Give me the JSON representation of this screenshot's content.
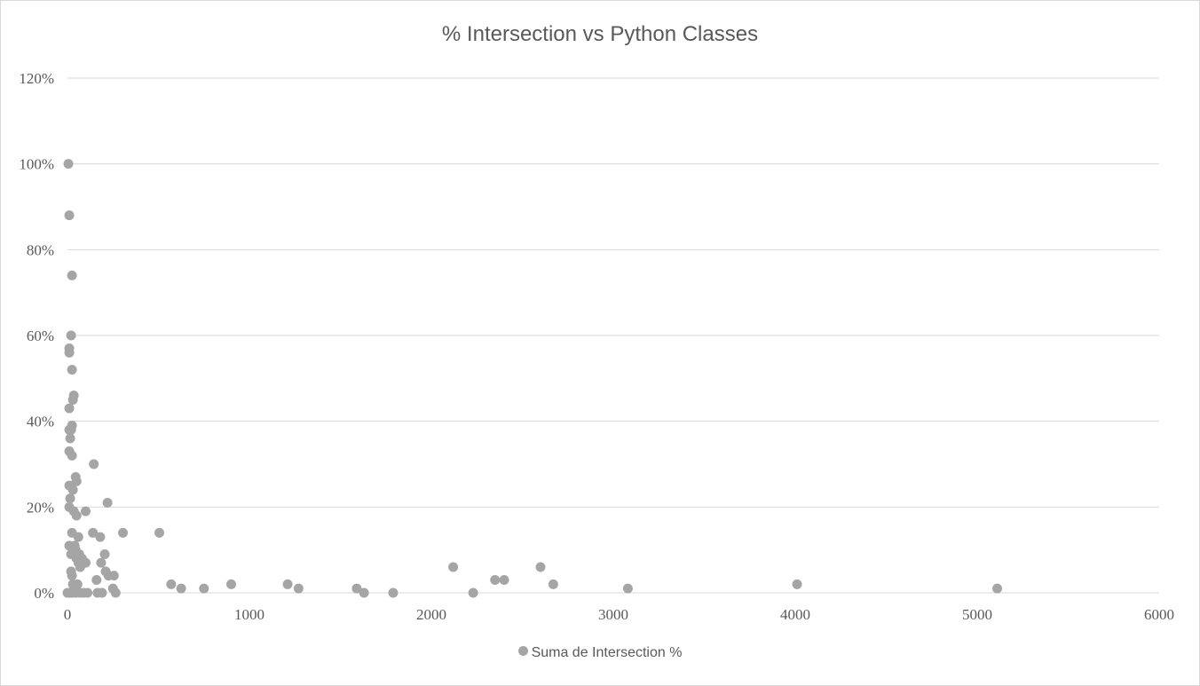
{
  "chart_data": {
    "type": "scatter",
    "title": "% Intersection vs Python Classes",
    "xlabel": "",
    "ylabel": "",
    "xlim": [
      0,
      6000
    ],
    "ylim": [
      0,
      1.2
    ],
    "x_ticks": [
      "0",
      "1000",
      "2000",
      "3000",
      "4000",
      "5000",
      "6000"
    ],
    "y_ticks": [
      "0%",
      "20%",
      "40%",
      "60%",
      "80%",
      "100%",
      "120%"
    ],
    "grid": "horizontal",
    "legend_position": "bottom",
    "marker_color": "#a5a5a5",
    "gridline_color": "#d9d9d9",
    "series": [
      {
        "name": "Suma de Intersection %",
        "points": [
          [
            0,
            0
          ],
          [
            5,
            1.0
          ],
          [
            10,
            0.88
          ],
          [
            10,
            0.57
          ],
          [
            10,
            0.56
          ],
          [
            10,
            0.43
          ],
          [
            10,
            0.38
          ],
          [
            10,
            0.33
          ],
          [
            10,
            0.25
          ],
          [
            10,
            0.2
          ],
          [
            10,
            0.11
          ],
          [
            15,
            0.36
          ],
          [
            15,
            0.22
          ],
          [
            15,
            0
          ],
          [
            20,
            0.6
          ],
          [
            20,
            0.38
          ],
          [
            20,
            0.09
          ],
          [
            20,
            0.05
          ],
          [
            20,
            0
          ],
          [
            25,
            0.74
          ],
          [
            25,
            0.52
          ],
          [
            25,
            0.39
          ],
          [
            25,
            0.32
          ],
          [
            25,
            0.14
          ],
          [
            25,
            0.04
          ],
          [
            25,
            0
          ],
          [
            30,
            0.45
          ],
          [
            30,
            0.24
          ],
          [
            30,
            0.02
          ],
          [
            35,
            0.46
          ],
          [
            35,
            0.19
          ],
          [
            40,
            0.11
          ],
          [
            40,
            0.01
          ],
          [
            45,
            0.27
          ],
          [
            45,
            0.1
          ],
          [
            45,
            0
          ],
          [
            50,
            0.26
          ],
          [
            50,
            0.18
          ],
          [
            50,
            0.08
          ],
          [
            55,
            0.02
          ],
          [
            60,
            0.13
          ],
          [
            60,
            0.07
          ],
          [
            65,
            0.09
          ],
          [
            70,
            0.06
          ],
          [
            70,
            0
          ],
          [
            80,
            0.08
          ],
          [
            90,
            0
          ],
          [
            100,
            0.19
          ],
          [
            100,
            0.07
          ],
          [
            110,
            0
          ],
          [
            140,
            0.14
          ],
          [
            145,
            0.3
          ],
          [
            160,
            0.03
          ],
          [
            165,
            0
          ],
          [
            180,
            0.13
          ],
          [
            185,
            0.07
          ],
          [
            190,
            0
          ],
          [
            205,
            0.09
          ],
          [
            210,
            0.05
          ],
          [
            220,
            0.21
          ],
          [
            225,
            0.04
          ],
          [
            250,
            0.01
          ],
          [
            255,
            0.04
          ],
          [
            265,
            0
          ],
          [
            305,
            0.14
          ],
          [
            505,
            0.14
          ],
          [
            570,
            0.02
          ],
          [
            625,
            0.01
          ],
          [
            750,
            0.01
          ],
          [
            900,
            0.02
          ],
          [
            1210,
            0.02
          ],
          [
            1270,
            0.01
          ],
          [
            1590,
            0.01
          ],
          [
            1630,
            0
          ],
          [
            1790,
            0
          ],
          [
            2120,
            0.06
          ],
          [
            2230,
            0
          ],
          [
            2350,
            0.03
          ],
          [
            2400,
            0.03
          ],
          [
            2600,
            0.06
          ],
          [
            2670,
            0.02
          ],
          [
            3080,
            0.01
          ],
          [
            4010,
            0.02
          ],
          [
            5110,
            0.01
          ]
        ]
      }
    ]
  }
}
